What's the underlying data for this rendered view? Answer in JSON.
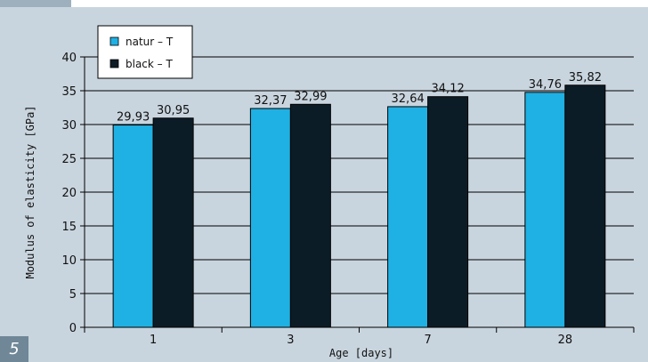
{
  "figure_number": "5",
  "chart_data": {
    "type": "bar",
    "categories": [
      "1",
      "3",
      "7",
      "28"
    ],
    "series": [
      {
        "name": "natur – T",
        "values": [
          29.93,
          32.37,
          32.64,
          34.76
        ],
        "labels": [
          "29,93",
          "32,37",
          "32,64",
          "34,76"
        ],
        "color": "#1fb1e3"
      },
      {
        "name": "black – T",
        "values": [
          30.95,
          32.99,
          34.12,
          35.82
        ],
        "labels": [
          "30,95",
          "32,99",
          "34,12",
          "35,82"
        ],
        "color": "#0c1c26"
      }
    ],
    "xlabel": "Age [days]",
    "ylabel": "Modulus of elasticity [GPa]",
    "ylim": [
      0,
      40
    ],
    "yticks": [
      0,
      5,
      10,
      15,
      20,
      25,
      30,
      35,
      40
    ],
    "grid": true,
    "legend": "top-left"
  }
}
